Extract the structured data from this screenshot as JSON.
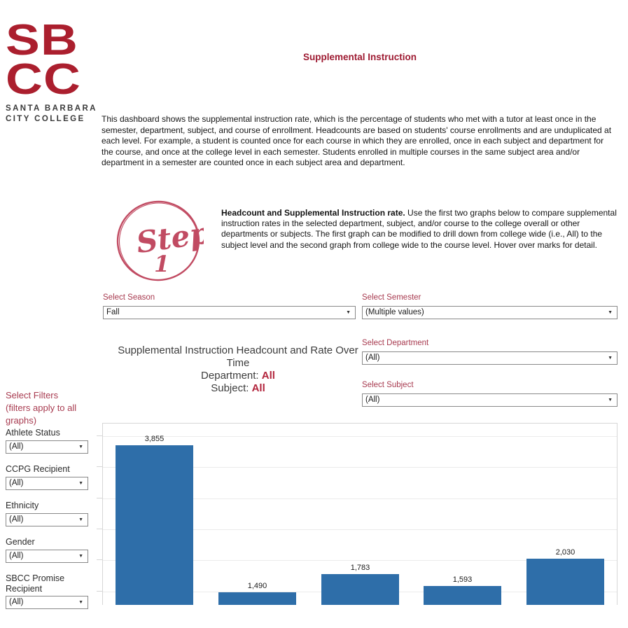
{
  "header": {
    "logo": {
      "line1": "SB",
      "line2": "CC",
      "subtitle1": "SANTA BARBARA",
      "subtitle2": "CITY COLLEGE"
    },
    "title": "Supplemental Instruction",
    "description": "This dashboard shows the supplemental instruction rate, which is the percentage of students who met with a tutor at least once in the semester, department, subject, and course of enrollment. Headcounts are based on students' course enrollments and are unduplicated at each level. For example, a student is counted once for each course in which they are enrolled, once in each subject and department for the course, and once at the college level in each semester. Students enrolled in multiple courses in the same subject area and/or department in a semester are counted once in each subject area and department."
  },
  "step1": {
    "badge_word": "Step",
    "badge_number": "1",
    "lead": "Headcount and Supplemental Instruction rate.",
    "text": " Use the first two graphs below to compare supplemental instruction rates in the selected department, subject, and/or course to the college overall or other departments or subjects. The first graph can be modified to drill down from college wide (i.e., All) to the subject level and the second graph from college wide to the course level. Hover over marks for detail."
  },
  "controls": {
    "season": {
      "label": "Select Season",
      "value": "Fall"
    },
    "semester": {
      "label": "Select Semester",
      "value": "(Multiple values)"
    },
    "department": {
      "label": "Select Department",
      "value": "(All)"
    },
    "subject": {
      "label": "Select Subject",
      "value": "(All)"
    }
  },
  "sidebar": {
    "title_line1": "Select Filters",
    "title_line2": "(filters apply to all graphs)",
    "filters": [
      {
        "label": "Athlete Status",
        "value": "(All)"
      },
      {
        "label": "CCPG Recipient",
        "value": "(All)"
      },
      {
        "label": "Ethnicity",
        "value": "(All)"
      },
      {
        "label": "Gender",
        "value": "(All)"
      },
      {
        "label": "SBCC Promise Recipient",
        "value": "(All)"
      }
    ]
  },
  "chart": {
    "title_line1": "Supplemental Instruction Headcount and Rate Over",
    "title_line2": "Time",
    "department_label": "Department:",
    "department_value": "All",
    "subject_label": "Subject:",
    "subject_value": "All"
  },
  "chart_data": {
    "type": "bar",
    "title": "Supplemental Instruction Headcount and Rate Over Time",
    "values": [
      3855,
      1490,
      1783,
      1593,
      2030
    ],
    "value_labels": [
      "3,855",
      "1,490",
      "1,783",
      "1,593",
      "2,030"
    ],
    "ylim": [
      0,
      4200
    ],
    "gridline_interval": 500,
    "grid": true,
    "x_tick_labels_visible": false,
    "bar_color": "#2E6EA9"
  },
  "colors": {
    "brand_red": "#AB1F2E",
    "title_crimson": "#9E1B32",
    "label_crimson": "#A83B50",
    "highlight_crimson": "#B2243C",
    "step_rose": "#C14B62",
    "bar_blue": "#2E6EA9"
  }
}
